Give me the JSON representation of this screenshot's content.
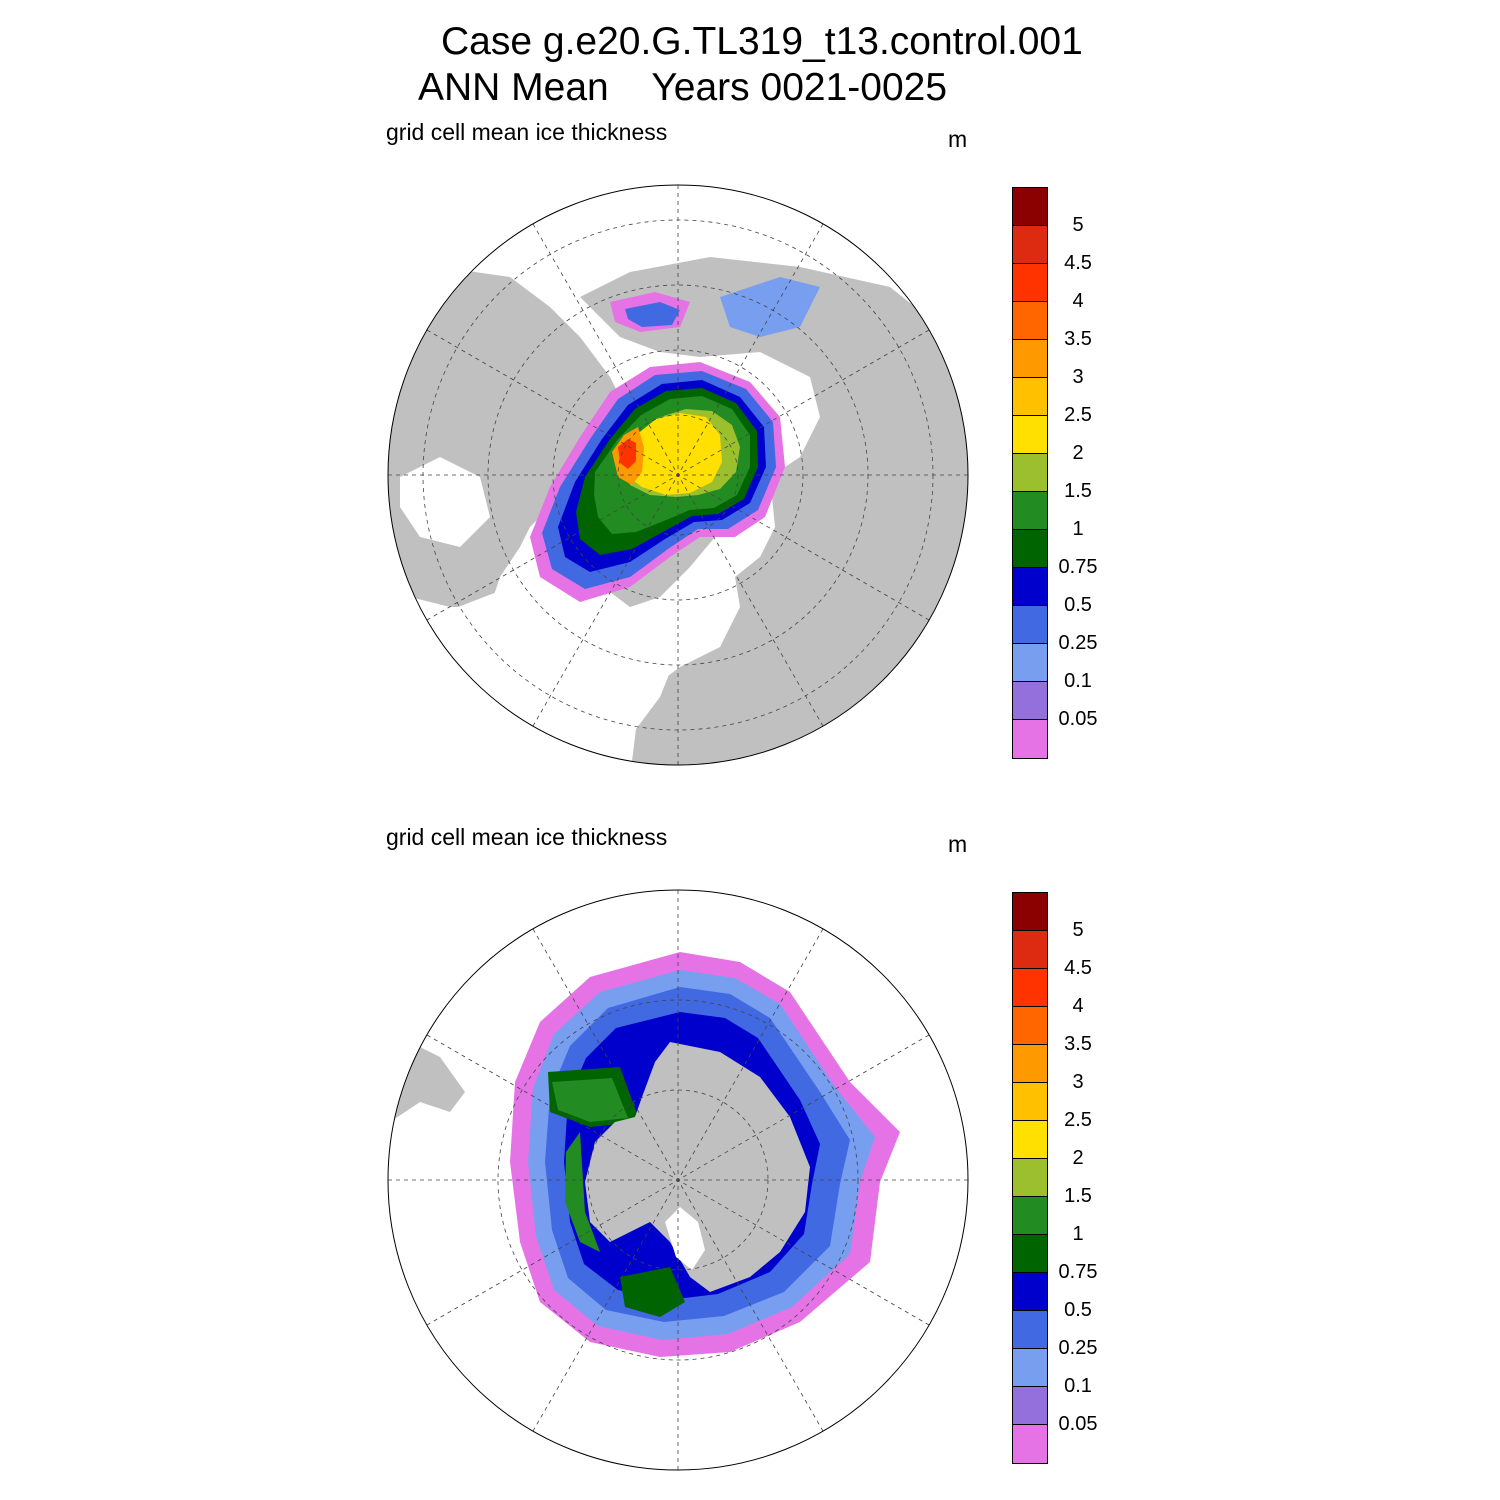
{
  "title": {
    "line1": "Case g.e20.G.TL319_t13.control.001",
    "line2": "ANN Mean    Years 0021-0025"
  },
  "panels": [
    {
      "id": "north",
      "label": "grid cell mean ice thickness",
      "unit": "m"
    },
    {
      "id": "south",
      "label": "grid cell mean ice thickness",
      "unit": "m"
    }
  ],
  "colorbar": {
    "labels": [
      "5",
      "4.5",
      "4",
      "3.5",
      "3",
      "2.5",
      "2",
      "1.5",
      "1",
      "0.75",
      "0.5",
      "0.25",
      "0.1",
      "0.05"
    ],
    "colors": [
      "#8b0000",
      "#dd2b12",
      "#ff3300",
      "#ff6600",
      "#ff9900",
      "#ffc000",
      "#ffe000",
      "#9cbf2e",
      "#228b22",
      "#006400",
      "#0000cd",
      "#4169e1",
      "#789ef0",
      "#9370db",
      "#e673e6"
    ]
  },
  "map_colors": {
    "land": "#c0c0c0",
    "ocean": "#ffffff"
  },
  "chart_data": {
    "type": "heatmap",
    "variable": "grid cell mean ice thickness",
    "unit": "m",
    "levels": [
      0.05,
      0.1,
      0.25,
      0.5,
      0.75,
      1,
      1.5,
      2,
      2.5,
      3,
      3.5,
      4,
      4.5,
      5
    ],
    "maps": [
      "Arctic polar stereographic",
      "Antarctic polar stereographic"
    ]
  }
}
